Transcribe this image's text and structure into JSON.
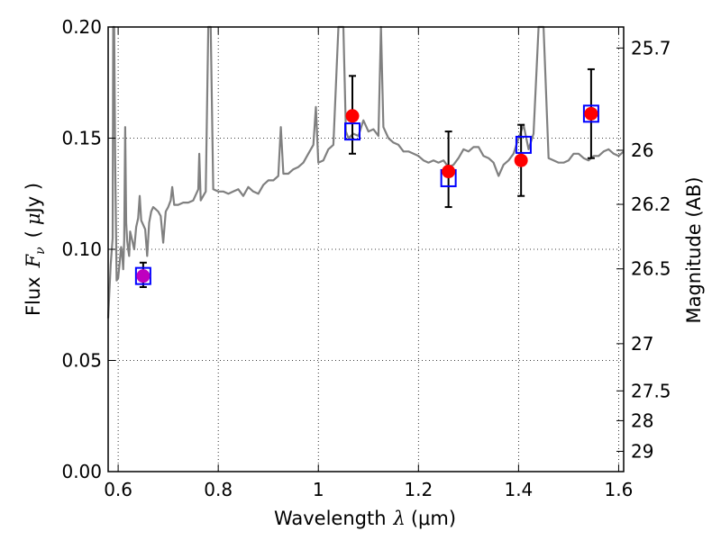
{
  "chart_data": {
    "type": "scatter",
    "title": "",
    "xlabel": "Wavelength  λ (μm)",
    "xlabel_text": "Wavelength",
    "xlabel_symbol": "λ",
    "xlabel_unit": "(μm)",
    "ylabel": "Flux  Fν  ( μJy )",
    "ylabel_text": "Flux",
    "ylabel_symbol": "F",
    "ylabel_subscript": "ν",
    "ylabel_unit_open": "(",
    "ylabel_unit_mu": "μ",
    "ylabel_unit_rest": "Jy )",
    "y2label": "Magnitude (AB)",
    "xlim": [
      0.58,
      1.61
    ],
    "ylim": [
      0,
      0.2
    ],
    "grid": true,
    "grid_style": "dotted",
    "x_ticks": [
      {
        "value": 0.6,
        "label": "0.6"
      },
      {
        "value": 0.8,
        "label": "0.8"
      },
      {
        "value": 1.0,
        "label": "1"
      },
      {
        "value": 1.2,
        "label": "1.2"
      },
      {
        "value": 1.4,
        "label": "1.4"
      },
      {
        "value": 1.6,
        "label": "1.6"
      }
    ],
    "y_ticks": [
      {
        "value": 0.0,
        "label": "0.00"
      },
      {
        "value": 0.05,
        "label": "0.05"
      },
      {
        "value": 0.1,
        "label": "0.10"
      },
      {
        "value": 0.15,
        "label": "0.15"
      },
      {
        "value": 0.2,
        "label": "0.20"
      }
    ],
    "y2_ticks": [
      {
        "value": 25.7,
        "label": "25.7"
      },
      {
        "value": 26.0,
        "label": "26"
      },
      {
        "value": 26.2,
        "label": "26.2"
      },
      {
        "value": 26.5,
        "label": "26.5"
      },
      {
        "value": 27.0,
        "label": "27"
      },
      {
        "value": 27.5,
        "label": "27.5"
      },
      {
        "value": 28.0,
        "label": "28"
      },
      {
        "value": 29.0,
        "label": "29"
      }
    ],
    "colors": {
      "spectrum": "#808080",
      "observed": "#ff0000",
      "observed_first": "#bf00bf",
      "model": "#0000ff",
      "errorbar": "#000000",
      "grid": "#000000"
    },
    "series": [
      {
        "kind": "line",
        "points": [
          [
            0.58,
            0.069
          ],
          [
            0.585,
            0.093
          ],
          [
            0.589,
            0.105
          ],
          [
            0.59,
            0.2
          ],
          [
            0.592,
            0.2
          ],
          [
            0.594,
            0.14
          ],
          [
            0.597,
            0.086
          ],
          [
            0.6,
            0.087
          ],
          [
            0.603,
            0.094
          ],
          [
            0.606,
            0.101
          ],
          [
            0.608,
            0.098
          ],
          [
            0.61,
            0.091
          ],
          [
            0.612,
            0.104
          ],
          [
            0.614,
            0.155
          ],
          [
            0.616,
            0.112
          ],
          [
            0.618,
            0.104
          ],
          [
            0.62,
            0.1
          ],
          [
            0.622,
            0.097
          ],
          [
            0.624,
            0.108
          ],
          [
            0.628,
            0.104
          ],
          [
            0.632,
            0.1
          ],
          [
            0.636,
            0.11
          ],
          [
            0.64,
            0.114
          ],
          [
            0.643,
            0.124
          ],
          [
            0.646,
            0.113
          ],
          [
            0.65,
            0.111
          ],
          [
            0.654,
            0.109
          ],
          [
            0.658,
            0.097
          ],
          [
            0.662,
            0.112
          ],
          [
            0.666,
            0.117
          ],
          [
            0.67,
            0.119
          ],
          [
            0.675,
            0.118
          ],
          [
            0.68,
            0.117
          ],
          [
            0.685,
            0.115
          ],
          [
            0.69,
            0.103
          ],
          [
            0.695,
            0.117
          ],
          [
            0.7,
            0.119
          ],
          [
            0.705,
            0.122
          ],
          [
            0.708,
            0.128
          ],
          [
            0.712,
            0.12
          ],
          [
            0.72,
            0.12
          ],
          [
            0.73,
            0.121
          ],
          [
            0.74,
            0.121
          ],
          [
            0.75,
            0.122
          ],
          [
            0.76,
            0.127
          ],
          [
            0.762,
            0.143
          ],
          [
            0.765,
            0.122
          ],
          [
            0.77,
            0.124
          ],
          [
            0.775,
            0.126
          ],
          [
            0.78,
            0.2
          ],
          [
            0.785,
            0.2
          ],
          [
            0.79,
            0.127
          ],
          [
            0.8,
            0.126
          ],
          [
            0.81,
            0.126
          ],
          [
            0.82,
            0.125
          ],
          [
            0.83,
            0.126
          ],
          [
            0.84,
            0.127
          ],
          [
            0.85,
            0.124
          ],
          [
            0.86,
            0.128
          ],
          [
            0.87,
            0.126
          ],
          [
            0.88,
            0.125
          ],
          [
            0.89,
            0.129
          ],
          [
            0.9,
            0.131
          ],
          [
            0.91,
            0.131
          ],
          [
            0.92,
            0.133
          ],
          [
            0.925,
            0.155
          ],
          [
            0.93,
            0.134
          ],
          [
            0.94,
            0.134
          ],
          [
            0.95,
            0.136
          ],
          [
            0.96,
            0.137
          ],
          [
            0.97,
            0.139
          ],
          [
            0.98,
            0.143
          ],
          [
            0.99,
            0.147
          ],
          [
            0.995,
            0.164
          ],
          [
            1.0,
            0.139
          ],
          [
            1.01,
            0.14
          ],
          [
            1.02,
            0.145
          ],
          [
            1.03,
            0.147
          ],
          [
            1.04,
            0.2
          ],
          [
            1.05,
            0.2
          ],
          [
            1.055,
            0.153
          ],
          [
            1.06,
            0.15
          ],
          [
            1.07,
            0.152
          ],
          [
            1.08,
            0.151
          ],
          [
            1.09,
            0.158
          ],
          [
            1.1,
            0.153
          ],
          [
            1.11,
            0.154
          ],
          [
            1.12,
            0.151
          ],
          [
            1.125,
            0.2
          ],
          [
            1.13,
            0.155
          ],
          [
            1.14,
            0.15
          ],
          [
            1.15,
            0.148
          ],
          [
            1.16,
            0.147
          ],
          [
            1.17,
            0.144
          ],
          [
            1.18,
            0.144
          ],
          [
            1.19,
            0.143
          ],
          [
            1.2,
            0.142
          ],
          [
            1.21,
            0.14
          ],
          [
            1.22,
            0.139
          ],
          [
            1.23,
            0.14
          ],
          [
            1.24,
            0.139
          ],
          [
            1.25,
            0.14
          ],
          [
            1.26,
            0.137
          ],
          [
            1.27,
            0.138
          ],
          [
            1.28,
            0.141
          ],
          [
            1.29,
            0.145
          ],
          [
            1.3,
            0.144
          ],
          [
            1.31,
            0.146
          ],
          [
            1.32,
            0.146
          ],
          [
            1.33,
            0.142
          ],
          [
            1.34,
            0.141
          ],
          [
            1.35,
            0.139
          ],
          [
            1.36,
            0.133
          ],
          [
            1.37,
            0.138
          ],
          [
            1.38,
            0.14
          ],
          [
            1.39,
            0.143
          ],
          [
            1.4,
            0.15
          ],
          [
            1.41,
            0.156
          ],
          [
            1.42,
            0.145
          ],
          [
            1.43,
            0.152
          ],
          [
            1.44,
            0.2
          ],
          [
            1.45,
            0.2
          ],
          [
            1.46,
            0.141
          ],
          [
            1.47,
            0.14
          ],
          [
            1.48,
            0.139
          ],
          [
            1.49,
            0.139
          ],
          [
            1.5,
            0.14
          ],
          [
            1.51,
            0.143
          ],
          [
            1.52,
            0.143
          ],
          [
            1.53,
            0.141
          ],
          [
            1.54,
            0.14
          ],
          [
            1.55,
            0.142
          ],
          [
            1.56,
            0.142
          ],
          [
            1.57,
            0.144
          ],
          [
            1.58,
            0.145
          ],
          [
            1.59,
            0.143
          ],
          [
            1.6,
            0.142
          ],
          [
            1.61,
            0.144
          ]
        ]
      },
      {
        "kind": "observed_points",
        "points": [
          {
            "x": 0.65,
            "y": 0.088,
            "ylo": 0.083,
            "yhi": 0.094
          },
          {
            "x": 1.068,
            "y": 0.16,
            "ylo": 0.143,
            "yhi": 0.178
          },
          {
            "x": 1.26,
            "y": 0.135,
            "ylo": 0.119,
            "yhi": 0.153
          },
          {
            "x": 1.405,
            "y": 0.14,
            "ylo": 0.124,
            "yhi": 0.156
          },
          {
            "x": 1.545,
            "y": 0.161,
            "ylo": 0.141,
            "yhi": 0.181
          }
        ]
      },
      {
        "kind": "model_points",
        "points": [
          {
            "x": 0.65,
            "y": 0.088
          },
          {
            "x": 1.068,
            "y": 0.153
          },
          {
            "x": 1.26,
            "y": 0.132
          },
          {
            "x": 1.41,
            "y": 0.147
          },
          {
            "x": 1.545,
            "y": 0.161
          }
        ]
      }
    ]
  }
}
